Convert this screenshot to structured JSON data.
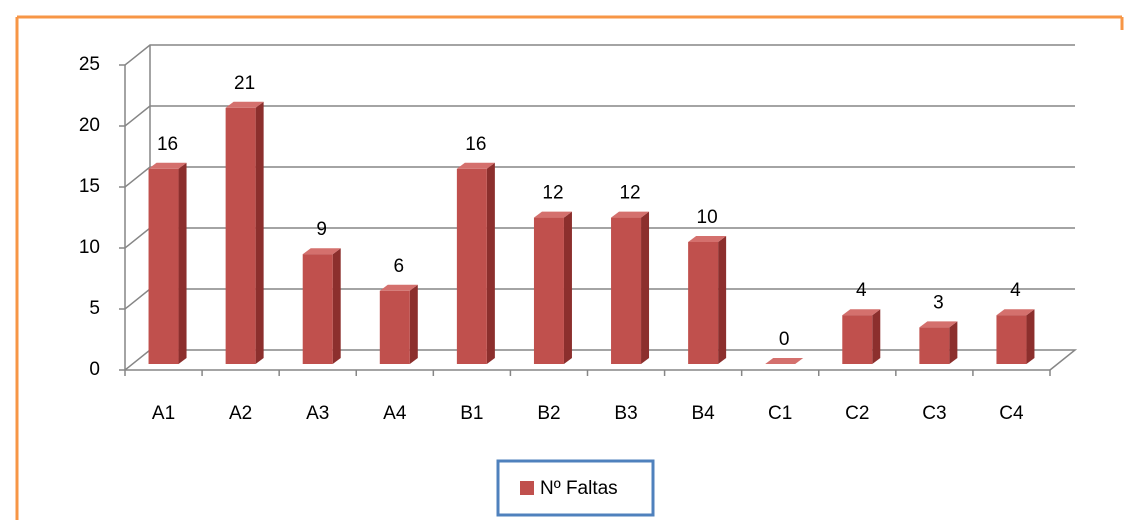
{
  "chart_data": {
    "type": "bar3d",
    "categories": [
      "A1",
      "A2",
      "A3",
      "A4",
      "B1",
      "B2",
      "B3",
      "B4",
      "C1",
      "C2",
      "C3",
      "C4"
    ],
    "series": [
      {
        "name": "Nº Faltas",
        "color": "#c0504d",
        "values": [
          16,
          21,
          9,
          6,
          16,
          12,
          12,
          10,
          0,
          4,
          3,
          4
        ]
      }
    ],
    "ylim": [
      0,
      25
    ],
    "yticks": [
      0,
      5,
      10,
      15,
      20,
      25
    ],
    "grid": true,
    "legend": "bottom"
  }
}
